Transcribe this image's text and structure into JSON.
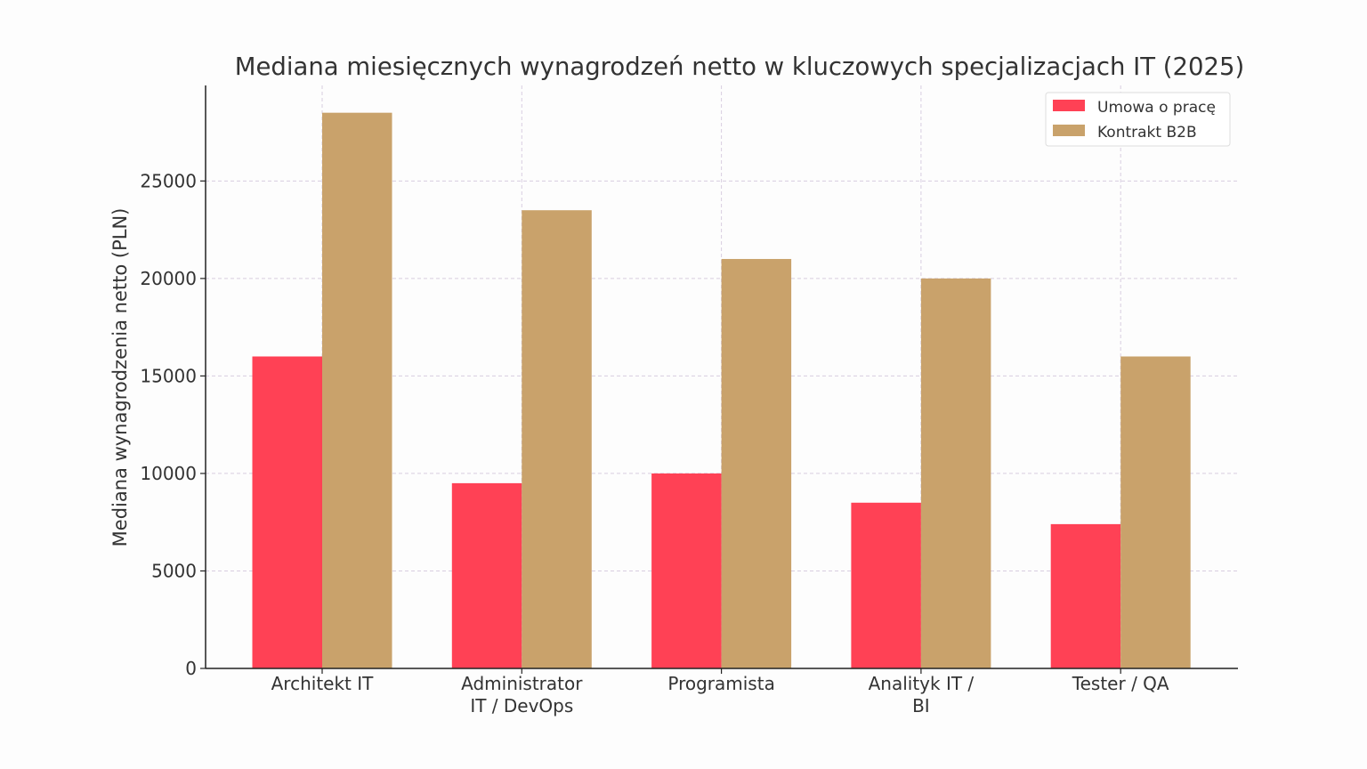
{
  "chart_data": {
    "type": "bar",
    "title": "Mediana miesięcznych wynagrodzeń netto w kluczowych specjalizacjach IT (2025)",
    "xlabel": "",
    "ylabel": "Mediana wynagrodzenia netto (PLN)",
    "categories": [
      [
        "Architekt IT"
      ],
      [
        "Administrator",
        "IT / DevOps"
      ],
      [
        "Programista"
      ],
      [
        "Analityk IT /",
        "BI"
      ],
      [
        "Tester / QA"
      ]
    ],
    "series": [
      {
        "name": "Umowa o pracę",
        "color": "#ff4155",
        "values": [
          16000,
          9500,
          10000,
          8500,
          7400
        ]
      },
      {
        "name": "Kontrakt B2B",
        "color": "#c9a26b",
        "values": [
          28500,
          23500,
          21000,
          20000,
          16000
        ]
      }
    ],
    "ylim": [
      0,
      29900
    ],
    "yticks": [
      0,
      5000,
      10000,
      15000,
      20000,
      25000
    ],
    "grid": true,
    "legend": "top-right"
  }
}
